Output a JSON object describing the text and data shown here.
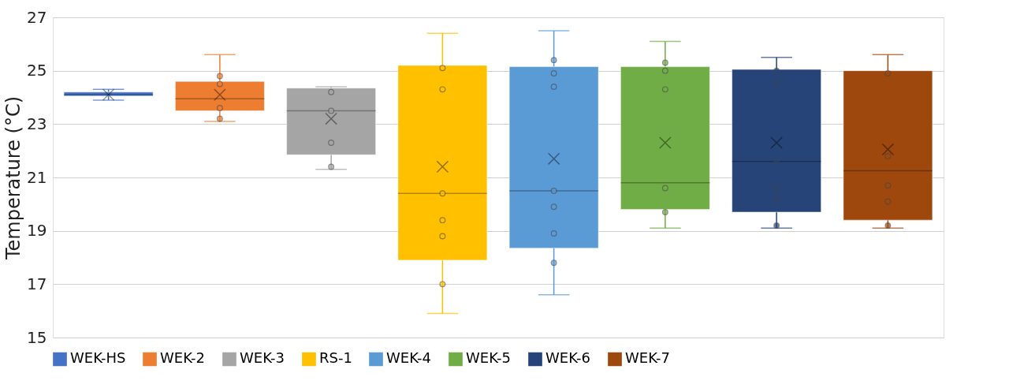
{
  "chart_data": {
    "type": "box",
    "ylabel": "Temperature (°C)",
    "categories": [
      null
    ],
    "ylim": [
      15,
      27
    ],
    "yticks": [
      15,
      17,
      19,
      21,
      23,
      25,
      27
    ],
    "grid": "y",
    "legend": "bottom",
    "tick_labels": "y",
    "marker": "circle",
    "series": [
      {
        "name": "WEK-HS",
        "color": "#4472c4",
        "boxes": [
          {
            "low": 23.9,
            "q1": 24.05,
            "median": 24.1,
            "q3": 24.2,
            "high": 24.3,
            "mean": 24.1
          }
        ]
      },
      {
        "name": "WEK-2",
        "color": "#ed7d31",
        "boxes": [
          {
            "low": 23.1,
            "q1": 23.5,
            "median": 23.95,
            "q3": 24.6,
            "high": 25.6,
            "mean": 24.1,
            "outliers": [
              24.8,
              24.5,
              23.6,
              23.2
            ]
          }
        ]
      },
      {
        "name": "WEK-3",
        "color": "#a5a5a5",
        "boxes": [
          {
            "low": 21.3,
            "q1": 21.85,
            "median": 23.5,
            "q3": 24.35,
            "high": 24.4,
            "mean": 23.2,
            "outliers": [
              24.2,
              23.5,
              22.3,
              21.4
            ]
          }
        ]
      },
      {
        "name": "RS-1",
        "color": "#ffc000",
        "boxes": [
          {
            "low": 15.9,
            "q1": 17.9,
            "median": 20.4,
            "q3": 25.2,
            "high": 26.4,
            "mean": 21.4,
            "outliers": [
              25.1,
              24.3,
              20.4,
              19.4,
              18.8,
              17.0
            ]
          }
        ]
      },
      {
        "name": "WEK-4",
        "color": "#5b9bd5",
        "boxes": [
          {
            "low": 16.6,
            "q1": 18.35,
            "median": 20.5,
            "q3": 25.15,
            "high": 26.5,
            "mean": 21.7,
            "outliers": [
              25.4,
              24.9,
              24.4,
              20.5,
              19.9,
              18.9,
              17.8
            ]
          }
        ]
      },
      {
        "name": "WEK-5",
        "color": "#70ad47",
        "boxes": [
          {
            "low": 19.1,
            "q1": 19.8,
            "median": 20.8,
            "q3": 25.15,
            "high": 26.1,
            "mean": 22.3,
            "outliers": [
              25.3,
              25.0,
              24.3,
              20.6,
              19.7
            ]
          }
        ]
      },
      {
        "name": "WEK-6",
        "color": "#264478",
        "boxes": [
          {
            "low": 19.1,
            "q1": 19.7,
            "median": 21.6,
            "q3": 25.05,
            "high": 25.5,
            "mean": 22.3,
            "outliers": [
              25.0,
              24.5,
              21.6,
              20.6,
              20.2,
              19.2
            ]
          }
        ]
      },
      {
        "name": "WEK-7",
        "color": "#9e480e",
        "boxes": [
          {
            "low": 19.1,
            "q1": 19.4,
            "median": 21.25,
            "q3": 25.0,
            "high": 25.6,
            "mean": 22.05,
            "outliers": [
              24.9,
              21.8,
              20.7,
              20.1,
              19.2
            ]
          }
        ]
      }
    ]
  }
}
